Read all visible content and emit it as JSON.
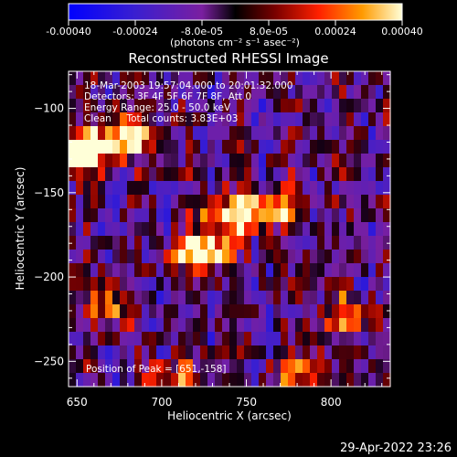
{
  "colorbar": {
    "ticks": [
      "-0.00040",
      "-0.00024",
      "-8.0e-05",
      "8.0e-05",
      "0.00024",
      "0.00040"
    ],
    "values": [
      -0.0004,
      -0.00024,
      -8e-05,
      8e-05,
      0.00024,
      0.0004
    ],
    "units": "(photons cm⁻² s⁻¹ asec⁻²)",
    "range": [
      -0.0004,
      0.0004
    ]
  },
  "chart_data": {
    "type": "heatmap",
    "title": "Reconstructed RHESSI Image",
    "xlabel": "Heliocentric X (arcsec)",
    "ylabel": "Heliocentric Y (arcsec)",
    "xlim": [
      645,
      835
    ],
    "ylim": [
      -265,
      -78
    ],
    "x_ticks": [
      650,
      700,
      750,
      800
    ],
    "y_ticks": [
      -100,
      -150,
      -200,
      -250
    ],
    "annotations": [
      "18-Mar-2003 19:57:04.000 to 20:01:32.000",
      "Detectors: 3F 4F 5F 6F 7F 8F, Att 0",
      "Energy Range: 25.0 - 50.0 keV",
      "Clean     Total counts: 3.83E+03"
    ],
    "peak_label": "Position of Peak = [651,-158]",
    "peak": [
      651,
      -158
    ]
  },
  "footer": {
    "date": "29-Apr-2022 23:26"
  }
}
